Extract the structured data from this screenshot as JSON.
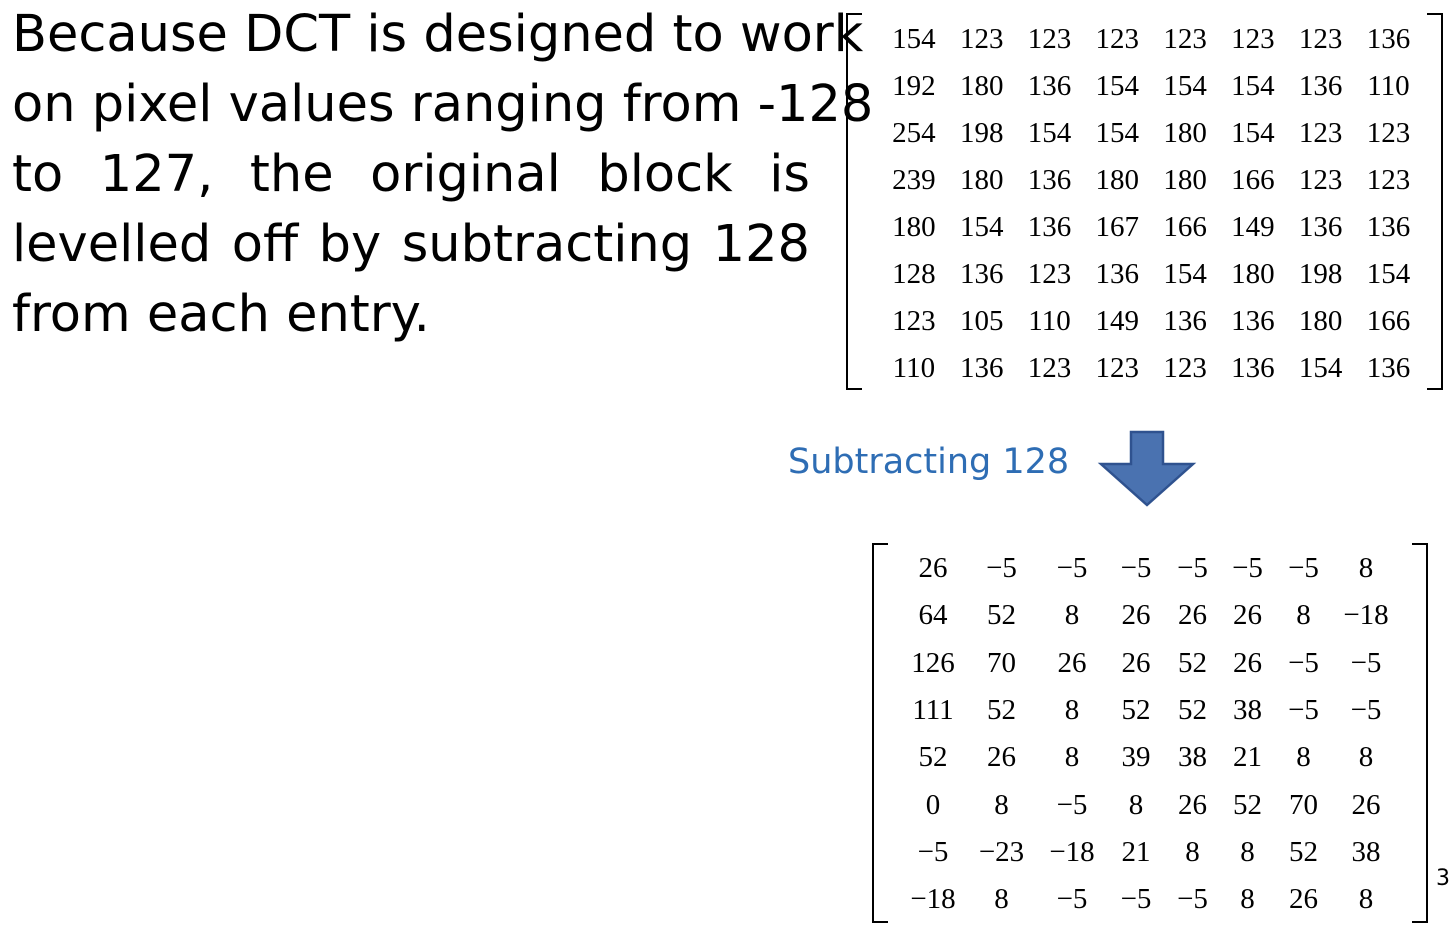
{
  "paragraph": {
    "lines": [
      "Because DCT is designed to work",
      "on pixel values ranging from -128",
      "to 127, the original block is",
      "levelled off by subtracting 128",
      "from each entry."
    ]
  },
  "original_block": [
    [
      "154",
      "123",
      "123",
      "123",
      "123",
      "123",
      "123",
      "136"
    ],
    [
      "192",
      "180",
      "136",
      "154",
      "154",
      "154",
      "136",
      "110"
    ],
    [
      "254",
      "198",
      "154",
      "154",
      "180",
      "154",
      "123",
      "123"
    ],
    [
      "239",
      "180",
      "136",
      "180",
      "180",
      "166",
      "123",
      "123"
    ],
    [
      "180",
      "154",
      "136",
      "167",
      "166",
      "149",
      "136",
      "136"
    ],
    [
      "128",
      "136",
      "123",
      "136",
      "154",
      "180",
      "198",
      "154"
    ],
    [
      "123",
      "105",
      "110",
      "149",
      "136",
      "136",
      "180",
      "166"
    ],
    [
      "110",
      "136",
      "123",
      "123",
      "123",
      "136",
      "154",
      "136"
    ]
  ],
  "transition": {
    "label": "Subtracting 128",
    "arrow_icon": "arrow-down-icon",
    "arrow_color": "#4a72b0"
  },
  "shifted_block": [
    [
      "26",
      "−5",
      "−5",
      "−5",
      "−5",
      "−5",
      "−5",
      "8"
    ],
    [
      "64",
      "52",
      "8",
      "26",
      "26",
      "26",
      "8",
      "−18"
    ],
    [
      "126",
      "70",
      "26",
      "26",
      "52",
      "26",
      "−5",
      "−5"
    ],
    [
      "111",
      "52",
      "8",
      "52",
      "52",
      "38",
      "−5",
      "−5"
    ],
    [
      "52",
      "26",
      "8",
      "39",
      "38",
      "21",
      "8",
      "8"
    ],
    [
      "0",
      "8",
      "−5",
      "8",
      "26",
      "52",
      "70",
      "26"
    ],
    [
      "−5",
      "−23",
      "−18",
      "21",
      "8",
      "8",
      "52",
      "38"
    ],
    [
      "−18",
      "8",
      "−5",
      "−5",
      "−5",
      "8",
      "26",
      "8"
    ]
  ],
  "page_number": "3"
}
